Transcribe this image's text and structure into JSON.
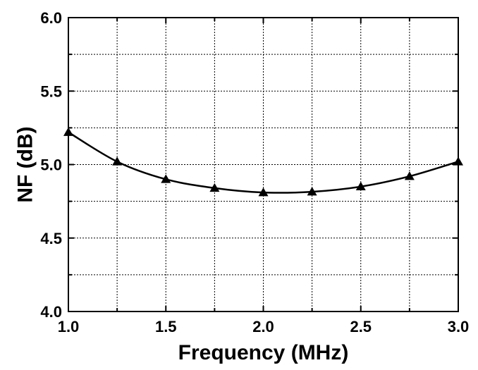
{
  "chart_data": {
    "type": "line",
    "title": "",
    "xlabel": "Frequency (MHz)",
    "ylabel": "NF (dB)",
    "xlim": [
      1.0,
      3.0
    ],
    "ylim": [
      4.0,
      6.0
    ],
    "x_ticks": [
      "1.0",
      "1.5",
      "2.0",
      "2.5",
      "3.0"
    ],
    "y_ticks": [
      "4.0",
      "4.5",
      "5.0",
      "5.5",
      "6.0"
    ],
    "x_grid": [
      1.25,
      1.5,
      1.75,
      2.0,
      2.25,
      2.5,
      2.75
    ],
    "y_grid": [
      4.25,
      4.5,
      4.75,
      5.0,
      5.25,
      5.5,
      5.75
    ],
    "grid": true,
    "legend": "none",
    "series": [
      {
        "marker": "triangle",
        "color": "#000000",
        "points": [
          {
            "x": 1.0,
            "y": 5.22
          },
          {
            "x": 1.25,
            "y": 5.02
          },
          {
            "x": 1.5,
            "y": 4.9
          },
          {
            "x": 1.75,
            "y": 4.84
          },
          {
            "x": 2.0,
            "y": 4.81
          },
          {
            "x": 2.25,
            "y": 4.815
          },
          {
            "x": 2.5,
            "y": 4.85
          },
          {
            "x": 2.75,
            "y": 4.92
          },
          {
            "x": 3.0,
            "y": 5.02
          }
        ]
      }
    ]
  }
}
